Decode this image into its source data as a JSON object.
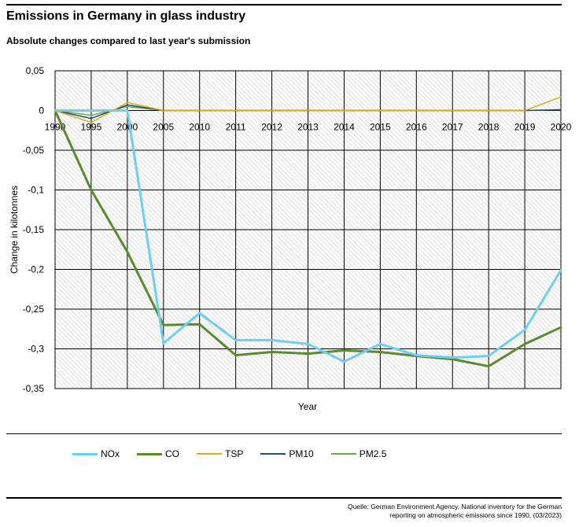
{
  "header": {
    "title": "Emissions in Germany in glass industry",
    "subtitle": "Absolute changes compared to last year's submission"
  },
  "footer": {
    "source_line1": "Quelle: German Environment Agency, National inventory for the German",
    "source_line2": "reporting on atmospheric emissions since 1990, (03/2023)"
  },
  "chart_data": {
    "type": "line",
    "title": "Emissions in Germany in glass industry",
    "subtitle": "Absolute changes compared to last year's submission",
    "xlabel": "Year",
    "ylabel": "Change in kilotonnes",
    "categories": [
      "1990",
      "1995",
      "2000",
      "2005",
      "2010",
      "2011",
      "2012",
      "2013",
      "2014",
      "2015",
      "2016",
      "2017",
      "2018",
      "2019",
      "2020"
    ],
    "ylim": [
      -0.35,
      0.05
    ],
    "yticks": [
      0.05,
      0,
      -0.05,
      -0.1,
      -0.15,
      -0.2,
      -0.25,
      -0.3,
      -0.35
    ],
    "ytick_labels": [
      "0,05",
      "0",
      "-0,05",
      "-0,1",
      "-0,15",
      "-0,2",
      "-0,25",
      "-0,3",
      "-0,35"
    ],
    "grid": true,
    "legend_position": "bottom",
    "series": [
      {
        "name": "NOx",
        "color": "#6fcdf4",
        "width": 3,
        "values": [
          0,
          0,
          0,
          -0.293,
          -0.255,
          -0.289,
          -0.289,
          -0.294,
          -0.316,
          -0.294,
          -0.308,
          -0.311,
          -0.309,
          -0.276,
          -0.201
        ]
      },
      {
        "name": "CO",
        "color": "#5a8a2e",
        "width": 3,
        "values": [
          0,
          -0.1,
          -0.178,
          -0.27,
          -0.269,
          -0.308,
          -0.304,
          -0.306,
          -0.302,
          -0.304,
          -0.309,
          -0.313,
          -0.322,
          -0.294,
          -0.273
        ]
      },
      {
        "name": "TSP",
        "color": "#e0a81c",
        "width": 1.5,
        "values": [
          0,
          -0.015,
          0.01,
          0,
          0,
          0,
          0,
          0,
          0,
          0,
          0,
          0,
          0,
          0,
          0.017
        ]
      },
      {
        "name": "PM10",
        "color": "#1f4e79",
        "width": 1.5,
        "values": [
          0,
          -0.01,
          0.007,
          0,
          0,
          0,
          0,
          0,
          0,
          0,
          0,
          0,
          0,
          0,
          0.001
        ]
      },
      {
        "name": "PM2.5",
        "color": "#70a845",
        "width": 1.5,
        "values": [
          0,
          -0.006,
          0.005,
          0,
          0,
          0,
          0,
          0,
          0,
          0,
          0,
          0,
          0,
          0,
          0.001
        ]
      }
    ]
  }
}
